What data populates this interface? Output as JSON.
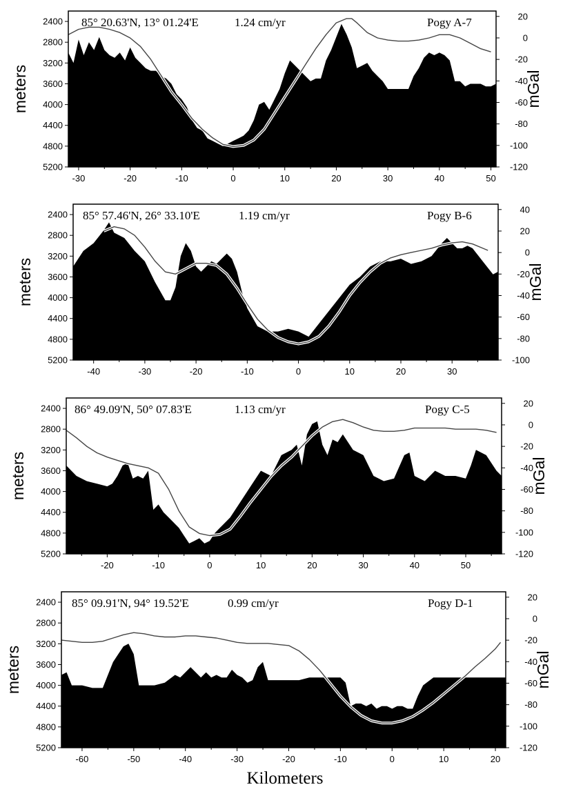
{
  "figure": {
    "xlabel": "Kilometers"
  },
  "chart_data": [
    {
      "type": "area",
      "location": "85° 20.63'N, 13° 01.24'E",
      "rate": "1.24 cm/yr",
      "name": "Pogy A-7",
      "ylabel_left": "meters",
      "ylabel_right": "mGal",
      "xlim": [
        -32,
        51
      ],
      "x_ticks": [
        -30,
        -20,
        -10,
        0,
        10,
        20,
        30,
        40,
        50
      ],
      "ylim_depth": [
        2200,
        5200
      ],
      "depth_ticks": [
        2400,
        2800,
        3200,
        3600,
        4000,
        4400,
        4800,
        5200
      ],
      "ylim_gravity": [
        -120,
        25
      ],
      "gravity_ticks": [
        20,
        0,
        -20,
        -40,
        -60,
        -80,
        -100,
        -120
      ],
      "bathymetry": {
        "x": [
          -32,
          -31,
          -30,
          -29,
          -28,
          -27,
          -26,
          -25,
          -24,
          -23,
          -22,
          -21,
          -20,
          -19,
          -18,
          -17,
          -16,
          -15,
          -14,
          -13,
          -12,
          -11,
          -10,
          -9,
          -8,
          -7,
          -6,
          -5,
          -4,
          -3,
          -2,
          -1,
          0,
          1,
          2,
          3,
          4,
          5,
          6,
          7,
          8,
          9,
          10,
          11,
          12,
          13,
          14,
          15,
          16,
          17,
          18,
          19,
          20,
          21,
          22,
          23,
          24,
          25,
          26,
          27,
          28,
          29,
          30,
          31,
          32,
          33,
          34,
          35,
          36,
          37,
          38,
          39,
          40,
          41,
          42,
          43,
          44,
          45,
          46,
          47,
          48,
          49,
          50,
          51
        ],
        "depth": [
          3000,
          3200,
          2750,
          3050,
          2800,
          2950,
          2700,
          2950,
          3050,
          3100,
          3000,
          3150,
          2900,
          3100,
          3200,
          3300,
          3350,
          3350,
          3450,
          3500,
          3600,
          3800,
          3900,
          4050,
          4300,
          4450,
          4500,
          4650,
          4700,
          4750,
          4800,
          4750,
          4700,
          4650,
          4600,
          4500,
          4300,
          4000,
          3950,
          4100,
          3900,
          3700,
          3400,
          3150,
          3250,
          3350,
          3450,
          3550,
          3500,
          3500,
          3150,
          2950,
          2700,
          2450,
          2650,
          2900,
          3300,
          3250,
          3200,
          3350,
          3450,
          3550,
          3700,
          3700,
          3700,
          3700,
          3700,
          3450,
          3300,
          3100,
          3000,
          3050,
          3000,
          3050,
          3150,
          3550,
          3550,
          3650,
          3600,
          3600,
          3600,
          3650,
          3650,
          3600
        ]
      },
      "gravity": {
        "x": [
          -32,
          -30,
          -28,
          -26,
          -24,
          -22,
          -20,
          -18,
          -16,
          -14,
          -12,
          -10,
          -8,
          -6,
          -4,
          -2,
          0,
          2,
          4,
          6,
          8,
          10,
          12,
          14,
          16,
          18,
          20,
          22,
          23,
          24,
          26,
          28,
          30,
          32,
          34,
          36,
          38,
          40,
          42,
          44,
          46,
          48,
          50
        ],
        "mgal": [
          3,
          8,
          10,
          10,
          8,
          5,
          0,
          -8,
          -20,
          -35,
          -50,
          -62,
          -75,
          -85,
          -93,
          -99,
          -101,
          -100,
          -95,
          -85,
          -70,
          -55,
          -40,
          -25,
          -10,
          3,
          14,
          18,
          18,
          14,
          5,
          0,
          -2,
          -3,
          -3,
          -2,
          0,
          3,
          3,
          0,
          -5,
          -10,
          -13
        ]
      }
    },
    {
      "type": "area",
      "location": "85° 57.46'N, 26° 33.10'E",
      "rate": "1.19 cm/yr",
      "name": "Pogy B-6",
      "ylabel_left": "meters",
      "ylabel_right": "mGal",
      "xlim": [
        -44,
        39
      ],
      "x_ticks": [
        -40,
        -30,
        -20,
        -10,
        0,
        10,
        20,
        30
      ],
      "ylim_depth": [
        2200,
        5200
      ],
      "depth_ticks": [
        2400,
        2800,
        3200,
        3600,
        4000,
        4400,
        4800,
        5200
      ],
      "ylim_gravity": [
        -100,
        45
      ],
      "gravity_ticks": [
        40,
        20,
        0,
        -20,
        -40,
        -60,
        -80,
        -100
      ],
      "bathymetry": {
        "x": [
          -44,
          -42,
          -40,
          -38,
          -37,
          -36,
          -34,
          -32,
          -30,
          -28,
          -26,
          -25,
          -24,
          -23,
          -22,
          -21,
          -20,
          -19,
          -18,
          -17,
          -16,
          -15,
          -14,
          -13,
          -12,
          -11,
          -10,
          -8,
          -6,
          -4,
          -2,
          0,
          2,
          4,
          6,
          8,
          10,
          12,
          14,
          16,
          18,
          20,
          22,
          24,
          26,
          28,
          29,
          30,
          31,
          32,
          33,
          34,
          36,
          38,
          39
        ],
        "depth": [
          3400,
          3100,
          2950,
          2700,
          2550,
          2750,
          2850,
          3100,
          3300,
          3700,
          4050,
          4050,
          3800,
          3200,
          2950,
          3100,
          3400,
          3500,
          3400,
          3300,
          3350,
          3250,
          3150,
          3250,
          3500,
          3900,
          4200,
          4550,
          4650,
          4650,
          4600,
          4650,
          4750,
          4500,
          4250,
          4000,
          3750,
          3600,
          3400,
          3300,
          3300,
          3250,
          3350,
          3300,
          3200,
          2950,
          2850,
          2950,
          3050,
          3050,
          3000,
          3050,
          3300,
          3550,
          3500
        ]
      },
      "gravity": {
        "x": [
          -38,
          -36,
          -34,
          -32,
          -30,
          -28,
          -26,
          -24,
          -22,
          -20,
          -18,
          -16,
          -14,
          -12,
          -10,
          -8,
          -6,
          -4,
          -2,
          0,
          2,
          4,
          6,
          8,
          10,
          12,
          14,
          16,
          18,
          20,
          22,
          24,
          26,
          28,
          30,
          32,
          34,
          36,
          37
        ],
        "mgal": [
          20,
          24,
          22,
          16,
          5,
          -8,
          -18,
          -20,
          -15,
          -10,
          -10,
          -12,
          -20,
          -33,
          -48,
          -62,
          -72,
          -79,
          -83,
          -85,
          -83,
          -78,
          -68,
          -55,
          -40,
          -28,
          -18,
          -10,
          -5,
          -2,
          0,
          2,
          4,
          7,
          9,
          10,
          8,
          4,
          2
        ]
      }
    },
    {
      "type": "area",
      "location": "86° 49.09'N,  50° 07.83'E",
      "rate": "1.13 cm/yr",
      "name": "Pogy C-5",
      "ylabel_left": "meters",
      "ylabel_right": "mGal",
      "xlim": [
        -28,
        57
      ],
      "x_ticks": [
        -20,
        -10,
        0,
        10,
        20,
        30,
        40,
        50
      ],
      "ylim_depth": [
        2200,
        5200
      ],
      "depth_ticks": [
        2400,
        2800,
        3200,
        3600,
        4000,
        4400,
        4800,
        5200
      ],
      "ylim_gravity": [
        -120,
        25
      ],
      "gravity_ticks": [
        20,
        0,
        -20,
        -40,
        -60,
        -80,
        -100,
        -120
      ],
      "bathymetry": {
        "x": [
          -28,
          -26,
          -24,
          -22,
          -20,
          -19,
          -18,
          -17,
          -16,
          -15,
          -14,
          -13,
          -12,
          -11,
          -10,
          -9,
          -8,
          -7,
          -6,
          -5,
          -4,
          -3,
          -2,
          -1,
          0,
          1,
          2,
          4,
          6,
          8,
          10,
          12,
          14,
          16,
          17,
          18,
          19,
          20,
          21,
          22,
          23,
          24,
          25,
          26,
          28,
          30,
          32,
          34,
          36,
          38,
          39,
          40,
          42,
          44,
          46,
          48,
          50,
          51,
          52,
          54,
          56,
          57
        ],
        "depth": [
          3500,
          3700,
          3800,
          3850,
          3900,
          3850,
          3700,
          3500,
          3450,
          3750,
          3700,
          3750,
          3600,
          4350,
          4250,
          4400,
          4500,
          4600,
          4700,
          4850,
          5000,
          4950,
          4900,
          5000,
          4950,
          4800,
          4700,
          4500,
          4200,
          3900,
          3600,
          3700,
          3300,
          3200,
          3100,
          3500,
          2900,
          2700,
          2650,
          3100,
          3300,
          3000,
          3050,
          2900,
          3200,
          3300,
          3700,
          3800,
          3750,
          3300,
          3250,
          3700,
          3800,
          3600,
          3700,
          3700,
          3750,
          3500,
          3200,
          3300,
          3600,
          3700
        ]
      },
      "gravity": {
        "x": [
          -28,
          -26,
          -24,
          -22,
          -20,
          -18,
          -16,
          -14,
          -12,
          -10,
          -8,
          -6,
          -4,
          -2,
          0,
          2,
          4,
          6,
          8,
          10,
          12,
          14,
          16,
          18,
          20,
          22,
          24,
          26,
          28,
          30,
          32,
          34,
          36,
          38,
          40,
          42,
          44,
          46,
          48,
          50,
          52,
          54,
          56
        ],
        "mgal": [
          -5,
          -12,
          -20,
          -26,
          -30,
          -33,
          -36,
          -38,
          -40,
          -45,
          -60,
          -80,
          -95,
          -101,
          -103,
          -102,
          -97,
          -85,
          -72,
          -60,
          -48,
          -38,
          -30,
          -20,
          -10,
          -2,
          3,
          5,
          2,
          -2,
          -5,
          -6,
          -6,
          -5,
          -3,
          -3,
          -3,
          -3,
          -4,
          -4,
          -4,
          -5,
          -7
        ]
      }
    },
    {
      "type": "area",
      "location": "85° 09.91'N,  94° 19.52'E",
      "rate": "0.99 cm/yr",
      "name": "Pogy D-1",
      "ylabel_left": "meters",
      "ylabel_right": "mGal",
      "xlim": [
        -64,
        22
      ],
      "x_ticks": [
        -60,
        -50,
        -40,
        -30,
        -20,
        -10,
        0,
        10,
        20
      ],
      "ylim_depth": [
        2200,
        5200
      ],
      "depth_ticks": [
        2400,
        2800,
        3200,
        3600,
        4000,
        4400,
        4800,
        5200
      ],
      "ylim_gravity": [
        -120,
        25
      ],
      "gravity_ticks": [
        20,
        0,
        -20,
        -40,
        -60,
        -80,
        -100,
        -120
      ],
      "bathymetry": {
        "x": [
          -64,
          -63,
          -62,
          -61,
          -60,
          -58,
          -56,
          -55,
          -54,
          -53,
          -52,
          -51,
          -50,
          -49,
          -48,
          -46,
          -44,
          -42,
          -41,
          -40,
          -39,
          -38,
          -37,
          -36,
          -35,
          -34,
          -33,
          -32,
          -31,
          -30,
          -29,
          -28,
          -27,
          -26,
          -25,
          -24,
          -23,
          -22,
          -20,
          -18,
          -16,
          -14,
          -12,
          -10,
          -9,
          -8,
          -7,
          -6,
          -5,
          -4,
          -3,
          -2,
          -1,
          0,
          1,
          2,
          3,
          4,
          5,
          6,
          8,
          10,
          12,
          14,
          16,
          18,
          20,
          22
        ],
        "depth": [
          3800,
          3750,
          4000,
          4000,
          4000,
          4050,
          4050,
          3800,
          3550,
          3400,
          3250,
          3200,
          3400,
          4000,
          4000,
          4000,
          3950,
          3800,
          3850,
          3750,
          3650,
          3750,
          3850,
          3750,
          3850,
          3800,
          3850,
          3850,
          3700,
          3800,
          3850,
          3950,
          3900,
          3650,
          3550,
          3900,
          3900,
          3900,
          3900,
          3900,
          3850,
          3850,
          3850,
          3850,
          3950,
          4400,
          4350,
          4350,
          4400,
          4350,
          4450,
          4400,
          4400,
          4450,
          4400,
          4400,
          4450,
          4450,
          4200,
          4000,
          3850,
          3850,
          3850,
          3850,
          3850,
          3850,
          3850,
          3850
        ]
      },
      "gravity": {
        "x": [
          -64,
          -62,
          -60,
          -58,
          -56,
          -54,
          -52,
          -50,
          -48,
          -46,
          -44,
          -42,
          -40,
          -38,
          -36,
          -34,
          -32,
          -30,
          -28,
          -26,
          -24,
          -22,
          -20,
          -18,
          -16,
          -14,
          -12,
          -10,
          -8,
          -6,
          -4,
          -2,
          0,
          2,
          4,
          6,
          8,
          10,
          12,
          14,
          16,
          18,
          20,
          21
        ],
        "mgal": [
          -20,
          -21,
          -22,
          -22,
          -21,
          -18,
          -15,
          -13,
          -14,
          -16,
          -17,
          -17,
          -16,
          -16,
          -17,
          -18,
          -20,
          -22,
          -23,
          -23,
          -23,
          -24,
          -25,
          -30,
          -38,
          -48,
          -60,
          -72,
          -82,
          -90,
          -95,
          -97,
          -97,
          -95,
          -91,
          -85,
          -78,
          -70,
          -62,
          -54,
          -45,
          -37,
          -28,
          -22
        ]
      }
    }
  ]
}
